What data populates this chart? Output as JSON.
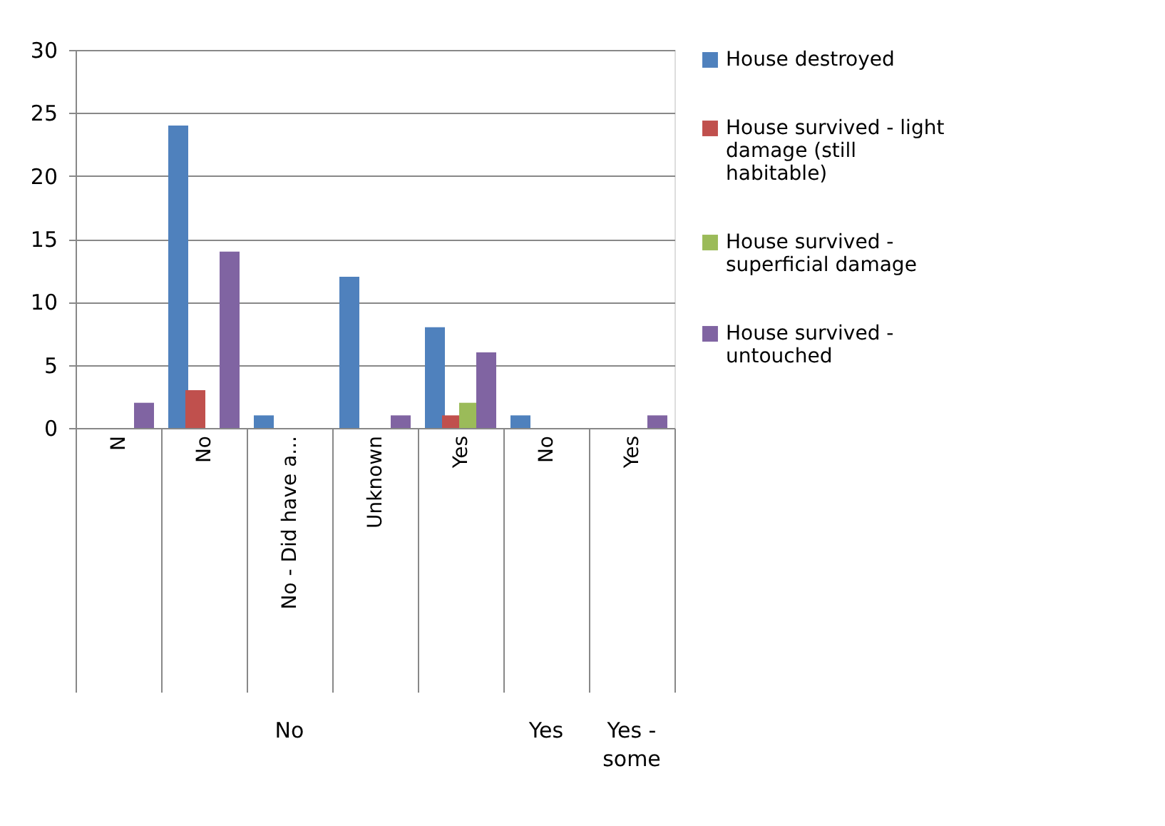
{
  "chart_data": {
    "type": "bar",
    "categories": [
      "N",
      "No",
      "No - Did have a...",
      "Unknown",
      "Yes",
      "No",
      "Yes"
    ],
    "series": [
      {
        "name": "House destroyed",
        "color": "#4f81bd",
        "values": [
          null,
          24,
          1,
          12,
          8,
          1,
          null
        ]
      },
      {
        "name": "House survived - light damage (still habitable)",
        "color": "#c0504d",
        "values": [
          null,
          3,
          null,
          null,
          1,
          null,
          null
        ]
      },
      {
        "name": "House survived - superficial damage",
        "color": "#9bbb59",
        "values": [
          null,
          null,
          null,
          null,
          2,
          null,
          null
        ]
      },
      {
        "name": "House survived - untouched",
        "color": "#8064a2",
        "values": [
          2,
          14,
          null,
          1,
          6,
          null,
          1
        ]
      }
    ],
    "annotations": [
      "No",
      "Yes",
      "Yes - some"
    ],
    "ylim": [
      0,
      30
    ],
    "yticks": [
      0,
      5,
      10,
      15,
      20,
      25,
      30
    ],
    "grid": "y",
    "legend": "right"
  }
}
